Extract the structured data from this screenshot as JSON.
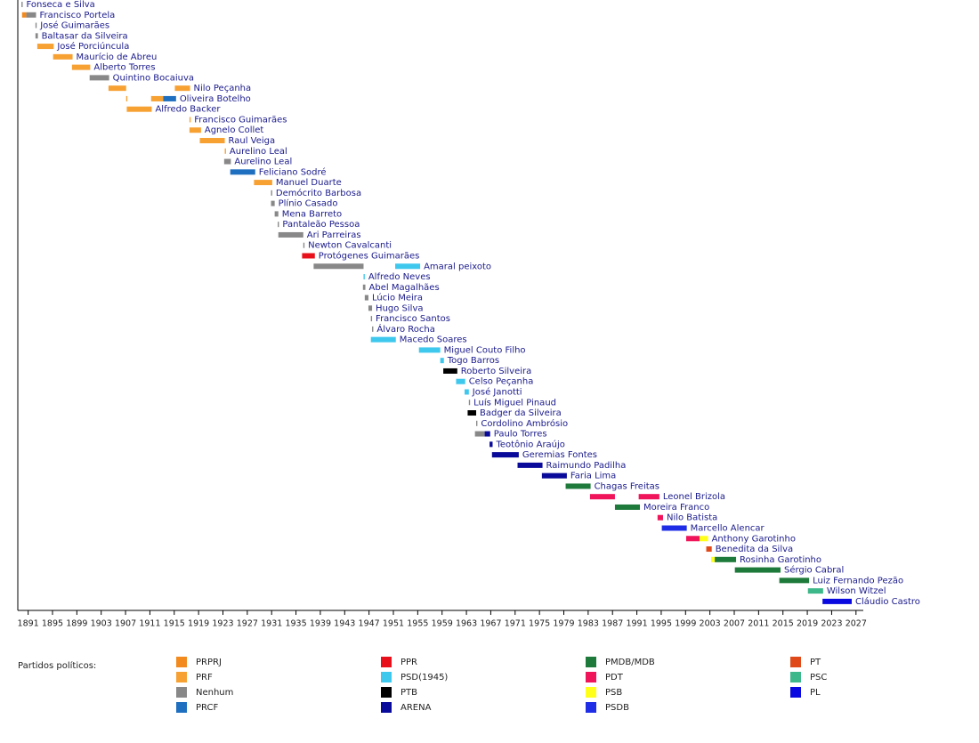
{
  "chart_data": {
    "type": "timeline",
    "legend_title": "Partidos políticos:",
    "xlim": [
      1889.3,
      2028.2
    ],
    "xticks": [
      1891,
      1895,
      1899,
      1903,
      1907,
      1911,
      1915,
      1919,
      1923,
      1927,
      1931,
      1935,
      1939,
      1943,
      1947,
      1951,
      1955,
      1959,
      1963,
      1967,
      1971,
      1975,
      1979,
      1983,
      1987,
      1991,
      1995,
      1999,
      2003,
      2007,
      2011,
      2015,
      2019,
      2023,
      2027
    ],
    "parties": [
      {
        "name": "PRPRJ",
        "color": "#f28a1e"
      },
      {
        "name": "PRF",
        "color": "#f7a133"
      },
      {
        "name": "Nenhum",
        "color": "#888888"
      },
      {
        "name": "PRCF",
        "color": "#1f6fc0"
      },
      {
        "name": "PPR",
        "color": "#e8111b"
      },
      {
        "name": "PSD(1945)",
        "color": "#3ec8ee"
      },
      {
        "name": "PTB",
        "color": "#000000"
      },
      {
        "name": "ARENA",
        "color": "#0a0a9a"
      },
      {
        "name": "PMDB/MDB",
        "color": "#1e7a3a"
      },
      {
        "name": "PDT",
        "color": "#f0145a"
      },
      {
        "name": "PSB",
        "color": "#ffff1a"
      },
      {
        "name": "PSDB",
        "color": "#1f2ee6"
      },
      {
        "name": "PT",
        "color": "#e04a1a"
      },
      {
        "name": "PSC",
        "color": "#3db88a"
      },
      {
        "name": "PL",
        "color": "#0a0ae0"
      }
    ],
    "rows": [
      {
        "name": "Fonseca e Silva",
        "bars": [
          {
            "start": 1889.9,
            "end": 1890.1,
            "party": "Nenhum"
          }
        ]
      },
      {
        "name": "Francisco Portela",
        "bars": [
          {
            "start": 1890.0,
            "end": 1890.7,
            "party": "PRPRJ"
          },
          {
            "start": 1890.7,
            "end": 1892.3,
            "party": "Nenhum"
          }
        ]
      },
      {
        "name": "José Guimarães",
        "bars": [
          {
            "start": 1892.2,
            "end": 1892.4,
            "party": "Nenhum"
          }
        ]
      },
      {
        "name": "Baltasar da Silveira",
        "bars": [
          {
            "start": 1892.2,
            "end": 1892.6,
            "party": "Nenhum"
          }
        ]
      },
      {
        "name": "José Porciúncula",
        "bars": [
          {
            "start": 1892.5,
            "end": 1895.2,
            "party": "PRF"
          }
        ]
      },
      {
        "name": "Maurício de Abreu",
        "bars": [
          {
            "start": 1895.1,
            "end": 1898.3,
            "party": "PRF"
          }
        ]
      },
      {
        "name": "Alberto Torres",
        "bars": [
          {
            "start": 1898.2,
            "end": 1901.2,
            "party": "PRF"
          }
        ]
      },
      {
        "name": "Quintino Bocaiuva",
        "bars": [
          {
            "start": 1901.1,
            "end": 1904.3,
            "party": "Nenhum"
          }
        ]
      },
      {
        "name": "Nilo Peçanha",
        "bars": [
          {
            "start": 1904.2,
            "end": 1907.1,
            "party": "PRF"
          },
          {
            "start": 1915.1,
            "end": 1917.6,
            "party": "PRF"
          }
        ]
      },
      {
        "name": "Oliveira Botelho",
        "bars": [
          {
            "start": 1907.1,
            "end": 1907.3,
            "party": "PRF"
          },
          {
            "start": 1911.2,
            "end": 1913.2,
            "party": "PRF"
          },
          {
            "start": 1913.2,
            "end": 1915.3,
            "party": "PRCF"
          }
        ]
      },
      {
        "name": "Alfredo Backer",
        "bars": [
          {
            "start": 1907.2,
            "end": 1911.3,
            "party": "PRF"
          }
        ]
      },
      {
        "name": "Francisco Guimarães",
        "bars": [
          {
            "start": 1917.5,
            "end": 1917.7,
            "party": "PRF"
          }
        ]
      },
      {
        "name": "Agnelo Collet",
        "bars": [
          {
            "start": 1917.5,
            "end": 1919.4,
            "party": "PRF"
          }
        ]
      },
      {
        "name": "Raul Veiga",
        "bars": [
          {
            "start": 1919.2,
            "end": 1923.3,
            "party": "PRF"
          }
        ]
      },
      {
        "name": "Aurelino Leal",
        "bars": [
          {
            "start": 1923.3,
            "end": 1923.5,
            "party": "PRF"
          }
        ]
      },
      {
        "name": "Aurelino Leal",
        "bars": [
          {
            "start": 1923.2,
            "end": 1924.3,
            "party": "Nenhum"
          }
        ]
      },
      {
        "name": "Feliciano Sodré",
        "bars": [
          {
            "start": 1924.2,
            "end": 1928.3,
            "party": "PRCF"
          }
        ]
      },
      {
        "name": "Manuel Duarte",
        "bars": [
          {
            "start": 1928.1,
            "end": 1931.1,
            "party": "PRF"
          }
        ]
      },
      {
        "name": "Demócrito Barbosa",
        "bars": [
          {
            "start": 1930.9,
            "end": 1931.1,
            "party": "Nenhum"
          }
        ]
      },
      {
        "name": "Plínio Casado",
        "bars": [
          {
            "start": 1930.9,
            "end": 1931.5,
            "party": "Nenhum"
          }
        ]
      },
      {
        "name": "Mena Barreto",
        "bars": [
          {
            "start": 1931.5,
            "end": 1932.1,
            "party": "Nenhum"
          }
        ]
      },
      {
        "name": "Pantaleão Pessoa",
        "bars": [
          {
            "start": 1932.0,
            "end": 1932.2,
            "party": "Nenhum"
          }
        ]
      },
      {
        "name": "Ari Parreiras",
        "bars": [
          {
            "start": 1932.1,
            "end": 1936.2,
            "party": "Nenhum"
          }
        ]
      },
      {
        "name": "Newton Cavalcanti",
        "bars": [
          {
            "start": 1936.2,
            "end": 1936.4,
            "party": "Nenhum"
          }
        ]
      },
      {
        "name": "Protógenes Guimarães",
        "bars": [
          {
            "start": 1936.0,
            "end": 1938.1,
            "party": "PPR"
          }
        ]
      },
      {
        "name": "Amaral peixoto",
        "bars": [
          {
            "start": 1937.9,
            "end": 1946.1,
            "party": "Nenhum"
          },
          {
            "start": 1951.3,
            "end": 1955.4,
            "party": "PSD(1945)"
          }
        ]
      },
      {
        "name": "Alfredo Neves",
        "bars": [
          {
            "start": 1946.1,
            "end": 1946.3,
            "party": "PSD(1945)"
          }
        ]
      },
      {
        "name": "Abel Magalhães",
        "bars": [
          {
            "start": 1946.0,
            "end": 1946.4,
            "party": "Nenhum"
          }
        ]
      },
      {
        "name": "Lúcio Meira",
        "bars": [
          {
            "start": 1946.3,
            "end": 1946.9,
            "party": "Nenhum"
          }
        ]
      },
      {
        "name": "Hugo Silva",
        "bars": [
          {
            "start": 1946.9,
            "end": 1947.5,
            "party": "Nenhum"
          }
        ]
      },
      {
        "name": "Francisco Santos",
        "bars": [
          {
            "start": 1947.3,
            "end": 1947.5,
            "party": "Nenhum"
          }
        ]
      },
      {
        "name": "Álvaro Rocha",
        "bars": [
          {
            "start": 1947.5,
            "end": 1947.7,
            "party": "Nenhum"
          }
        ]
      },
      {
        "name": "Macedo Soares",
        "bars": [
          {
            "start": 1947.3,
            "end": 1951.4,
            "party": "PSD(1945)"
          }
        ]
      },
      {
        "name": "Miguel Couto Filho",
        "bars": [
          {
            "start": 1955.2,
            "end": 1958.7,
            "party": "PSD(1945)"
          }
        ]
      },
      {
        "name": "Togo Barros",
        "bars": [
          {
            "start": 1958.7,
            "end": 1959.3,
            "party": "PSD(1945)"
          }
        ]
      },
      {
        "name": "Roberto Silveira",
        "bars": [
          {
            "start": 1959.2,
            "end": 1961.5,
            "party": "PTB"
          }
        ]
      },
      {
        "name": "Celso Peçanha",
        "bars": [
          {
            "start": 1961.3,
            "end": 1962.8,
            "party": "PSD(1945)"
          }
        ]
      },
      {
        "name": "José Janotti",
        "bars": [
          {
            "start": 1962.7,
            "end": 1963.4,
            "party": "PSD(1945)"
          }
        ]
      },
      {
        "name": "Luís Miguel Pinaud",
        "bars": [
          {
            "start": 1963.4,
            "end": 1963.6,
            "party": "Nenhum"
          }
        ]
      },
      {
        "name": "Badger da Silveira",
        "bars": [
          {
            "start": 1963.2,
            "end": 1964.6,
            "party": "PTB"
          }
        ]
      },
      {
        "name": "Cordolino Ambrósio",
        "bars": [
          {
            "start": 1964.6,
            "end": 1964.8,
            "party": "Nenhum"
          }
        ]
      },
      {
        "name": "Paulo Torres",
        "bars": [
          {
            "start": 1964.4,
            "end": 1966.0,
            "party": "Nenhum"
          },
          {
            "start": 1966.0,
            "end": 1966.9,
            "party": "ARENA"
          }
        ]
      },
      {
        "name": "Teotônio Araújo",
        "bars": [
          {
            "start": 1966.8,
            "end": 1967.3,
            "party": "ARENA"
          }
        ]
      },
      {
        "name": "Geremias Fontes",
        "bars": [
          {
            "start": 1967.2,
            "end": 1971.6,
            "party": "ARENA"
          }
        ]
      },
      {
        "name": "Raimundo Padilha",
        "bars": [
          {
            "start": 1971.4,
            "end": 1975.5,
            "party": "ARENA"
          }
        ]
      },
      {
        "name": "Faria Lima",
        "bars": [
          {
            "start": 1975.4,
            "end": 1979.5,
            "party": "ARENA"
          }
        ]
      },
      {
        "name": "Chagas Freitas",
        "bars": [
          {
            "start": 1979.3,
            "end": 1983.4,
            "party": "PMDB/MDB"
          }
        ]
      },
      {
        "name": "Leonel Brizola",
        "bars": [
          {
            "start": 1983.3,
            "end": 1987.4,
            "party": "PDT"
          },
          {
            "start": 1991.3,
            "end": 1994.7,
            "party": "PDT"
          }
        ]
      },
      {
        "name": "Moreira Franco",
        "bars": [
          {
            "start": 1987.4,
            "end": 1991.5,
            "party": "PMDB/MDB"
          }
        ]
      },
      {
        "name": "Nilo Batista",
        "bars": [
          {
            "start": 1994.4,
            "end": 1995.3,
            "party": "PDT"
          }
        ]
      },
      {
        "name": "Marcello Alencar",
        "bars": [
          {
            "start": 1995.1,
            "end": 1999.2,
            "party": "PSDB"
          }
        ]
      },
      {
        "name": "Anthony Garotinho",
        "bars": [
          {
            "start": 1999.1,
            "end": 2001.3,
            "party": "PDT"
          },
          {
            "start": 2001.3,
            "end": 2002.7,
            "party": "PSB"
          }
        ]
      },
      {
        "name": "Benedita da Silva",
        "bars": [
          {
            "start": 2002.4,
            "end": 2003.3,
            "party": "PT"
          }
        ]
      },
      {
        "name": "Rosinha Garotinho",
        "bars": [
          {
            "start": 2003.2,
            "end": 2003.8,
            "party": "PSB"
          },
          {
            "start": 2003.8,
            "end": 2007.3,
            "party": "PMDB/MDB"
          }
        ]
      },
      {
        "name": "Sérgio Cabral",
        "bars": [
          {
            "start": 2007.1,
            "end": 2014.6,
            "party": "PMDB/MDB"
          }
        ]
      },
      {
        "name": "Luiz Fernando Pezão",
        "bars": [
          {
            "start": 2014.4,
            "end": 2019.3,
            "party": "PMDB/MDB"
          }
        ]
      },
      {
        "name": "Wilson Witzel",
        "bars": [
          {
            "start": 2019.1,
            "end": 2021.6,
            "party": "PSC"
          }
        ]
      },
      {
        "name": "Cláudio Castro",
        "bars": [
          {
            "start": 2021.5,
            "end": 2026.3,
            "party": "PL"
          }
        ]
      }
    ]
  }
}
